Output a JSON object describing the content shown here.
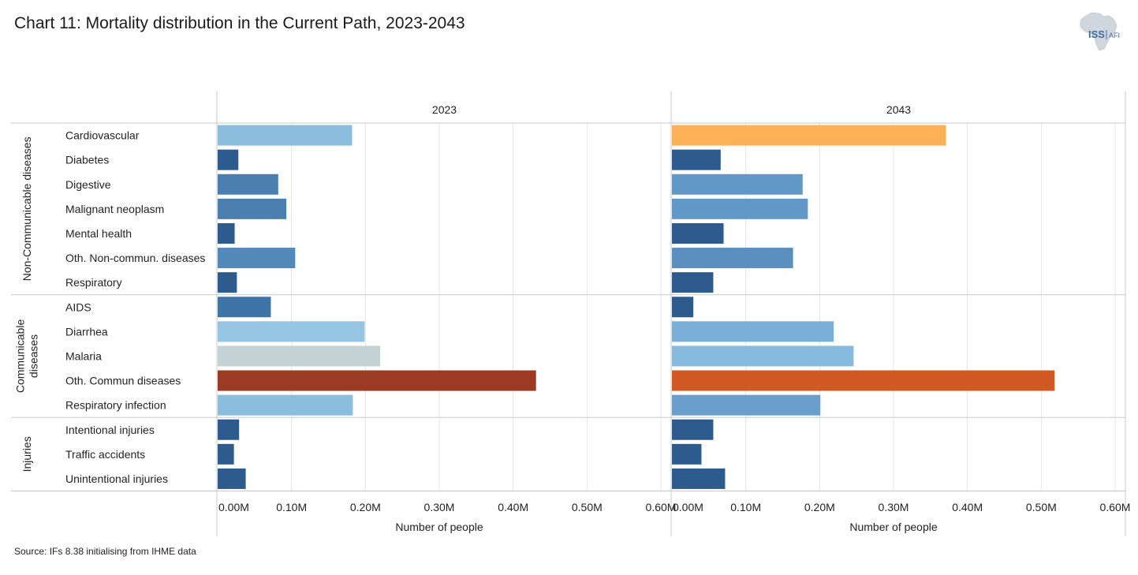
{
  "title": "Chart 11: Mortality distribution in the Current Path, 2023-2043",
  "source": "Source: IFs 8.38 initialising from IHME data",
  "logo": {
    "main": "ISS",
    "sub": "AFI"
  },
  "chart_data": {
    "type": "bar",
    "orientation": "horizontal",
    "title": "Chart 11: Mortality distribution in the Current Path, 2023-2043",
    "xlabel": "Number of people",
    "xlim": [
      0,
      0.6
    ],
    "xticks": [
      0,
      0.1,
      0.2,
      0.3,
      0.4,
      0.5,
      0.6
    ],
    "xtick_labels": [
      "0.00M",
      "0.10M",
      "0.20M",
      "0.30M",
      "0.40M",
      "0.50M",
      "0.60M"
    ],
    "unit": "millions of people",
    "groups": [
      {
        "name": "Non-Communicable diseases",
        "label_lines": [
          "Non-Communicable diseases"
        ],
        "categories": [
          "Cardiovascular",
          "Diabetes",
          "Digestive",
          "Malignant neoplasm",
          "Mental health",
          "Oth. Non-commun. diseases",
          "Respiratory"
        ]
      },
      {
        "name": "Communicable diseases",
        "label_lines": [
          "Communicable",
          "diseases"
        ],
        "categories": [
          "AIDS",
          "Diarrhea",
          "Malaria",
          "Oth. Commun diseases",
          "Respiratory infection"
        ]
      },
      {
        "name": "Injuries",
        "label_lines": [
          "Injuries"
        ],
        "categories": [
          "Intentional injuries",
          "Traffic accidents",
          "Unintentional injuries"
        ]
      }
    ],
    "panels": [
      {
        "name": "2023",
        "values": [
          0.182,
          0.028,
          0.082,
          0.093,
          0.023,
          0.105,
          0.026,
          0.072,
          0.199,
          0.22,
          0.431,
          0.183,
          0.029,
          0.022,
          0.038
        ],
        "colors": [
          "#8bbddd",
          "#2e5b8e",
          "#4a7fb0",
          "#4a7fb0",
          "#2e5b8e",
          "#5389bb",
          "#2e5b8e",
          "#3f74a8",
          "#95c5e2",
          "#c4d2d4",
          "#9b3b23",
          "#8bbddd",
          "#2e5b8e",
          "#2e5b8e",
          "#2e5b8e"
        ]
      },
      {
        "name": "2043",
        "values": [
          0.371,
          0.066,
          0.177,
          0.184,
          0.07,
          0.164,
          0.056,
          0.029,
          0.219,
          0.246,
          0.518,
          0.201,
          0.056,
          0.04,
          0.072
        ],
        "colors": [
          "#fdb157",
          "#2e5b8e",
          "#6298c7",
          "#6298c7",
          "#2e5b8e",
          "#5a8fc0",
          "#2e5b8e",
          "#2e5b8e",
          "#7aaed6",
          "#86bade",
          "#d15a24",
          "#6a9fcc",
          "#2e5b8e",
          "#2e5b8e",
          "#2e5b8e"
        ]
      }
    ]
  }
}
